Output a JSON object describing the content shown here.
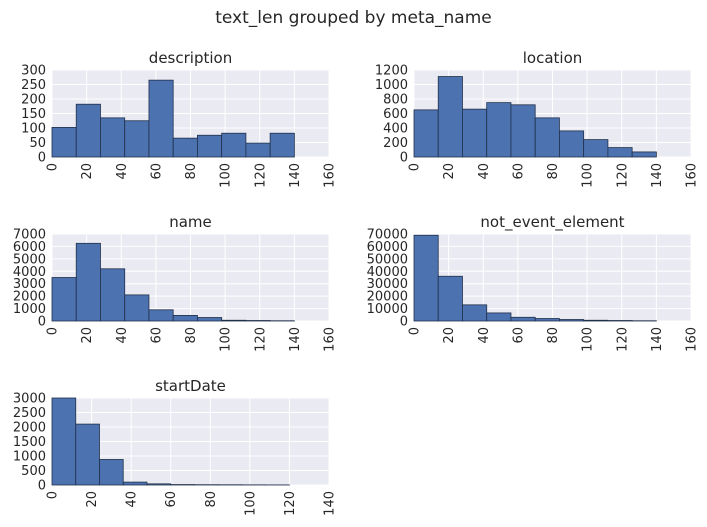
{
  "suptitle": "text_len grouped by meta_name",
  "chart_data": [
    {
      "type": "bar",
      "title": "description",
      "bin_edges": [
        0,
        14,
        28,
        42,
        56,
        70,
        84,
        98,
        112,
        126,
        140
      ],
      "values": [
        102,
        182,
        135,
        125,
        265,
        65,
        75,
        82,
        48,
        82
      ],
      "xlim": [
        0,
        160
      ],
      "ylim": [
        0,
        300
      ],
      "xticks": [
        0,
        20,
        40,
        60,
        80,
        100,
        120,
        140,
        160
      ],
      "yticks": [
        0,
        50,
        100,
        150,
        200,
        250,
        300
      ],
      "grid": true
    },
    {
      "type": "bar",
      "title": "location",
      "bin_edges": [
        0,
        14,
        28,
        42,
        56,
        70,
        84,
        98,
        112,
        126,
        140
      ],
      "values": [
        650,
        1110,
        660,
        750,
        720,
        540,
        360,
        240,
        130,
        70
      ],
      "xlim": [
        0,
        160
      ],
      "ylim": [
        0,
        1200
      ],
      "xticks": [
        0,
        20,
        40,
        60,
        80,
        100,
        120,
        140,
        160
      ],
      "yticks": [
        0,
        200,
        400,
        600,
        800,
        1000,
        1200
      ],
      "grid": true
    },
    {
      "type": "bar",
      "title": "name",
      "bin_edges": [
        0,
        14,
        28,
        42,
        56,
        70,
        84,
        98,
        112,
        126,
        140
      ],
      "values": [
        3500,
        6250,
        4200,
        2100,
        900,
        450,
        280,
        60,
        40,
        20
      ],
      "xlim": [
        0,
        160
      ],
      "ylim": [
        0,
        7000
      ],
      "xticks": [
        0,
        20,
        40,
        60,
        80,
        100,
        120,
        140,
        160
      ],
      "yticks": [
        0,
        1000,
        2000,
        3000,
        4000,
        5000,
        6000,
        7000
      ],
      "grid": true
    },
    {
      "type": "bar",
      "title": "not_event_element",
      "bin_edges": [
        0,
        14,
        28,
        42,
        56,
        70,
        84,
        98,
        112,
        126,
        140
      ],
      "values": [
        69000,
        36000,
        13000,
        6500,
        3000,
        2000,
        1200,
        600,
        400,
        200
      ],
      "xlim": [
        0,
        160
      ],
      "ylim": [
        0,
        70000
      ],
      "xticks": [
        0,
        20,
        40,
        60,
        80,
        100,
        120,
        140,
        160
      ],
      "yticks": [
        0,
        10000,
        20000,
        30000,
        40000,
        50000,
        60000,
        70000
      ],
      "grid": true
    },
    {
      "type": "bar",
      "title": "startDate",
      "bin_edges": [
        0,
        12,
        24,
        36,
        48,
        60,
        72,
        84,
        96,
        108,
        120
      ],
      "values": [
        3000,
        2100,
        880,
        100,
        40,
        15,
        10,
        8,
        5,
        3
      ],
      "xlim": [
        0,
        140
      ],
      "ylim": [
        0,
        3000
      ],
      "xticks": [
        0,
        20,
        40,
        60,
        80,
        100,
        120,
        140
      ],
      "yticks": [
        0,
        500,
        1000,
        1500,
        2000,
        2500,
        3000
      ],
      "grid": true
    }
  ],
  "colors": {
    "bar_fill": "#4c72b0",
    "bar_edge": "#20304a",
    "axes_bg": "#eaeaf2",
    "grid": "#ffffff",
    "text": "#262626"
  }
}
